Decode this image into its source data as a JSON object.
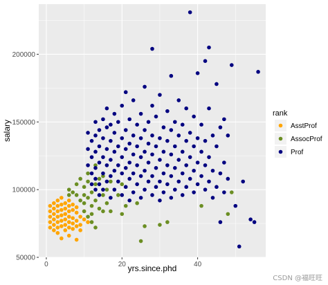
{
  "chart_data": {
    "type": "scatter",
    "xlabel": "yrs.since.phd",
    "ylabel": "salary",
    "xlim": [
      -2,
      58
    ],
    "ylim": [
      50000,
      237000
    ],
    "x_ticks": [
      0,
      20,
      40
    ],
    "y_ticks": [
      50000,
      100000,
      150000,
      200000
    ],
    "grid": true,
    "legend_title": "rank",
    "legend_position": "right",
    "colors": {
      "panel": "#ebebeb",
      "grid": "#ffffff",
      "AsstProf": "#ffa500",
      "AssocProf": "#6b8e23",
      "Prof": "#000080"
    },
    "series": [
      {
        "name": "AsstProf",
        "points": [
          [
            1,
            88000
          ],
          [
            1,
            84000
          ],
          [
            1,
            80000
          ],
          [
            1,
            76000
          ],
          [
            1,
            72000
          ],
          [
            2,
            90000
          ],
          [
            2,
            86000
          ],
          [
            2,
            82000
          ],
          [
            2,
            78000
          ],
          [
            2,
            74000
          ],
          [
            2,
            70000
          ],
          [
            3,
            92000
          ],
          [
            3,
            88000
          ],
          [
            3,
            84000
          ],
          [
            3,
            80000
          ],
          [
            3,
            76000
          ],
          [
            3,
            72000
          ],
          [
            3,
            68000
          ],
          [
            4,
            94000
          ],
          [
            4,
            89000
          ],
          [
            4,
            85000
          ],
          [
            4,
            81000
          ],
          [
            4,
            77000
          ],
          [
            4,
            73000
          ],
          [
            4,
            64000
          ],
          [
            5,
            90000
          ],
          [
            5,
            86000
          ],
          [
            5,
            82000
          ],
          [
            5,
            78000
          ],
          [
            5,
            74000
          ],
          [
            5,
            70000
          ],
          [
            6,
            92000
          ],
          [
            6,
            88000
          ],
          [
            6,
            84000
          ],
          [
            6,
            80000
          ],
          [
            6,
            76000
          ],
          [
            6,
            72000
          ],
          [
            6,
            66000
          ],
          [
            7,
            89000
          ],
          [
            7,
            85000
          ],
          [
            7,
            79000
          ],
          [
            7,
            75000
          ],
          [
            7,
            71000
          ],
          [
            8,
            87000
          ],
          [
            8,
            83000
          ],
          [
            8,
            77000
          ],
          [
            8,
            73000
          ],
          [
            8,
            63000
          ],
          [
            9,
            80000
          ],
          [
            9,
            74000
          ],
          [
            9,
            70000
          ],
          [
            10,
            84000
          ],
          [
            10,
            78000
          ],
          [
            11,
            76000
          ]
        ]
      },
      {
        "name": "AssocProf",
        "points": [
          [
            6,
            96000
          ],
          [
            6,
            100000
          ],
          [
            7,
            98000
          ],
          [
            8,
            104000
          ],
          [
            8,
            96000
          ],
          [
            9,
            92000
          ],
          [
            9,
            108000
          ],
          [
            10,
            102000
          ],
          [
            10,
            96000
          ],
          [
            10,
            90000
          ],
          [
            10,
            84000
          ],
          [
            11,
            112000
          ],
          [
            11,
            106000
          ],
          [
            11,
            94000
          ],
          [
            11,
            80000
          ],
          [
            12,
            98000
          ],
          [
            12,
            88000
          ],
          [
            12,
            82000
          ],
          [
            12,
            76000
          ],
          [
            13,
            118000
          ],
          [
            13,
            104000
          ],
          [
            13,
            92000
          ],
          [
            13,
            72000
          ],
          [
            14,
            108000
          ],
          [
            14,
            86000
          ],
          [
            15,
            110000
          ],
          [
            15,
            96000
          ],
          [
            15,
            84000
          ],
          [
            16,
            100000
          ],
          [
            16,
            90000
          ],
          [
            17,
            106000
          ],
          [
            17,
            84000
          ],
          [
            19,
            96000
          ],
          [
            20,
            82000
          ],
          [
            20,
            104000
          ],
          [
            21,
            88000
          ],
          [
            24,
            90000
          ],
          [
            25,
            62000
          ],
          [
            26,
            73000
          ],
          [
            30,
            74000
          ],
          [
            32,
            76000
          ],
          [
            41,
            88000
          ],
          [
            48,
            82000
          ],
          [
            49,
            98000
          ]
        ]
      },
      {
        "name": "Prof",
        "points": [
          [
            11,
            118000
          ],
          [
            11,
            130000
          ],
          [
            11,
            142000
          ],
          [
            12,
            104000
          ],
          [
            12,
            112000
          ],
          [
            12,
            124000
          ],
          [
            12,
            136000
          ],
          [
            13,
            100000
          ],
          [
            13,
            108000
          ],
          [
            13,
            116000
          ],
          [
            13,
            128000
          ],
          [
            13,
            140000
          ],
          [
            13,
            150000
          ],
          [
            14,
            96000
          ],
          [
            14,
            104000
          ],
          [
            14,
            120000
          ],
          [
            14,
            132000
          ],
          [
            14,
            144000
          ],
          [
            15,
            100000
          ],
          [
            15,
            112000
          ],
          [
            15,
            124000
          ],
          [
            15,
            138000
          ],
          [
            15,
            152000
          ],
          [
            16,
            106000
          ],
          [
            16,
            118000
          ],
          [
            16,
            130000
          ],
          [
            16,
            146000
          ],
          [
            16,
            160000
          ],
          [
            17,
            94000
          ],
          [
            17,
            110000
          ],
          [
            17,
            122000
          ],
          [
            17,
            136000
          ],
          [
            17,
            148000
          ],
          [
            18,
            100000
          ],
          [
            18,
            114000
          ],
          [
            18,
            128000
          ],
          [
            18,
            142000
          ],
          [
            18,
            156000
          ],
          [
            19,
            106000
          ],
          [
            19,
            118000
          ],
          [
            19,
            132000
          ],
          [
            19,
            150000
          ],
          [
            20,
            96000
          ],
          [
            20,
            112000
          ],
          [
            20,
            124000
          ],
          [
            20,
            138000
          ],
          [
            20,
            162000
          ],
          [
            21,
            102000
          ],
          [
            21,
            116000
          ],
          [
            21,
            130000
          ],
          [
            21,
            144000
          ],
          [
            21,
            172000
          ],
          [
            22,
            92000
          ],
          [
            22,
            108000
          ],
          [
            22,
            120000
          ],
          [
            22,
            134000
          ],
          [
            22,
            152000
          ],
          [
            23,
            98000
          ],
          [
            23,
            112000
          ],
          [
            23,
            126000
          ],
          [
            23,
            140000
          ],
          [
            23,
            166000
          ],
          [
            24,
            104000
          ],
          [
            24,
            118000
          ],
          [
            24,
            132000
          ],
          [
            24,
            148000
          ],
          [
            25,
            94000
          ],
          [
            25,
            110000
          ],
          [
            25,
            124000
          ],
          [
            25,
            138000
          ],
          [
            25,
            156000
          ],
          [
            26,
            100000
          ],
          [
            26,
            114000
          ],
          [
            26,
            128000
          ],
          [
            26,
            144000
          ],
          [
            26,
            176000
          ],
          [
            27,
            106000
          ],
          [
            27,
            120000
          ],
          [
            27,
            134000
          ],
          [
            27,
            150000
          ],
          [
            28,
            96000
          ],
          [
            28,
            110000
          ],
          [
            28,
            126000
          ],
          [
            28,
            140000
          ],
          [
            28,
            162000
          ],
          [
            28,
            204000
          ],
          [
            29,
            102000
          ],
          [
            29,
            116000
          ],
          [
            29,
            132000
          ],
          [
            29,
            154000
          ],
          [
            30,
            92000
          ],
          [
            30,
            106000
          ],
          [
            30,
            122000
          ],
          [
            30,
            138000
          ],
          [
            30,
            170000
          ],
          [
            31,
            98000
          ],
          [
            31,
            112000
          ],
          [
            31,
            128000
          ],
          [
            31,
            146000
          ],
          [
            32,
            104000
          ],
          [
            32,
            118000
          ],
          [
            32,
            136000
          ],
          [
            32,
            158000
          ],
          [
            33,
            94000
          ],
          [
            33,
            110000
          ],
          [
            33,
            126000
          ],
          [
            33,
            144000
          ],
          [
            33,
            184000
          ],
          [
            34,
            100000
          ],
          [
            34,
            116000
          ],
          [
            34,
            132000
          ],
          [
            34,
            150000
          ],
          [
            35,
            106000
          ],
          [
            35,
            122000
          ],
          [
            35,
            140000
          ],
          [
            35,
            166000
          ],
          [
            36,
            96000
          ],
          [
            36,
            112000
          ],
          [
            36,
            128000
          ],
          [
            36,
            148000
          ],
          [
            37,
            102000
          ],
          [
            37,
            118000
          ],
          [
            37,
            136000
          ],
          [
            37,
            160000
          ],
          [
            38,
            231000
          ],
          [
            38,
            108000
          ],
          [
            38,
            124000
          ],
          [
            38,
            142000
          ],
          [
            39,
            98000
          ],
          [
            39,
            114000
          ],
          [
            39,
            132000
          ],
          [
            39,
            154000
          ],
          [
            40,
            104000
          ],
          [
            40,
            120000
          ],
          [
            40,
            138000
          ],
          [
            40,
            186000
          ],
          [
            41,
            110000
          ],
          [
            41,
            128000
          ],
          [
            41,
            148000
          ],
          [
            42,
            195000
          ],
          [
            42,
            100000
          ],
          [
            42,
            118000
          ],
          [
            42,
            136000
          ],
          [
            43,
            205000
          ],
          [
            43,
            106000
          ],
          [
            43,
            124000
          ],
          [
            43,
            160000
          ],
          [
            44,
            94000
          ],
          [
            44,
            114000
          ],
          [
            44,
            140000
          ],
          [
            45,
            102000
          ],
          [
            45,
            132000
          ],
          [
            45,
            178000
          ],
          [
            46,
            76000
          ],
          [
            46,
            112000
          ],
          [
            46,
            146000
          ],
          [
            47,
            98000
          ],
          [
            47,
            120000
          ],
          [
            47,
            152000
          ],
          [
            48,
            108000
          ],
          [
            48,
            140000
          ],
          [
            49,
            192000
          ],
          [
            50,
            88000
          ],
          [
            51,
            58000
          ],
          [
            52,
            106000
          ],
          [
            54,
            78000
          ],
          [
            55,
            76000
          ],
          [
            56,
            187000
          ]
        ]
      }
    ]
  },
  "watermark": "CSDN @福旺旺"
}
